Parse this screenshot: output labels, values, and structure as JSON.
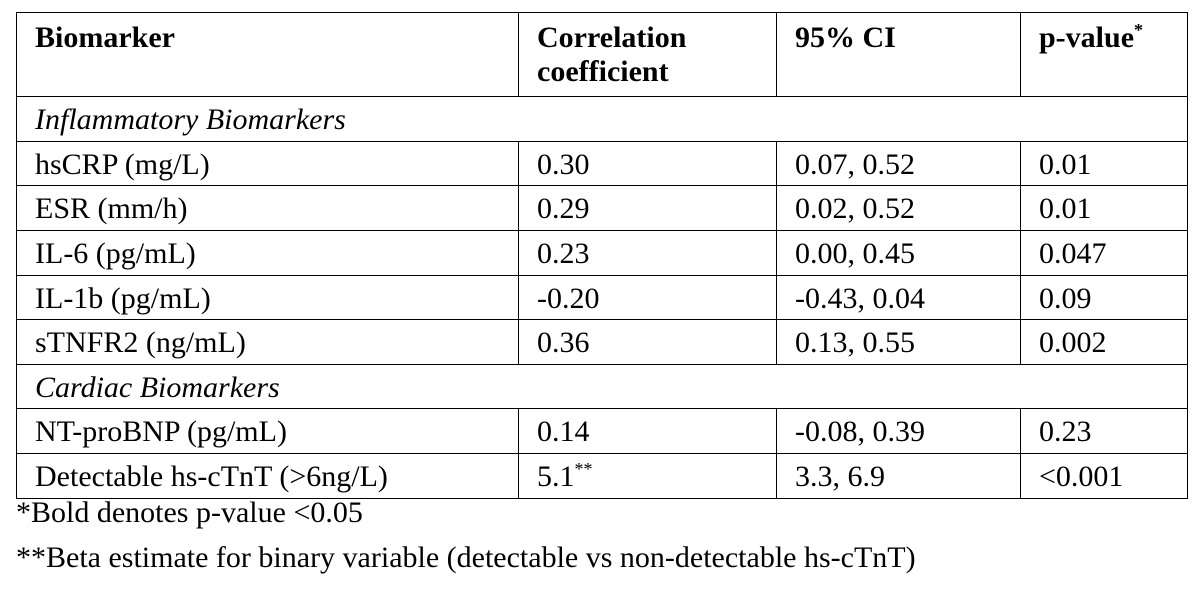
{
  "table": {
    "headers": {
      "biomarker": "Biomarker",
      "correlation": "Correlation coefficient",
      "ci": "95% CI",
      "pvalue": "p-value",
      "pvalue_mark": "*"
    },
    "sections": [
      {
        "title": "Inflammatory Biomarkers",
        "rows": [
          {
            "biomarker": "hsCRP (mg/L)",
            "correlation": "0.30",
            "correlation_mark": "",
            "ci": "0.07, 0.52",
            "pvalue": "0.01",
            "significant": true
          },
          {
            "biomarker": "ESR (mm/h)",
            "correlation": "0.29",
            "correlation_mark": "",
            "ci": "0.02, 0.52",
            "pvalue": "0.01",
            "significant": true
          },
          {
            "biomarker": "IL-6 (pg/mL)",
            "correlation": "0.23",
            "correlation_mark": "",
            "ci": "0.00, 0.45",
            "pvalue": "0.047",
            "significant": true
          },
          {
            "biomarker": "IL-1b (pg/mL)",
            "correlation": "-0.20",
            "correlation_mark": "",
            "ci": "-0.43, 0.04",
            "pvalue": "0.09",
            "significant": false
          },
          {
            "biomarker": "sTNFR2 (ng/mL)",
            "correlation": "0.36",
            "correlation_mark": "",
            "ci": "0.13, 0.55",
            "pvalue": "0.002",
            "significant": true
          }
        ]
      },
      {
        "title": "Cardiac Biomarkers",
        "rows": [
          {
            "biomarker": "NT-proBNP (pg/mL)",
            "correlation": "0.14",
            "correlation_mark": "",
            "ci": "-0.08, 0.39",
            "pvalue": "0.23",
            "significant": false
          },
          {
            "biomarker": "Detectable hs-cTnT (>6ng/L)",
            "correlation": "5.1",
            "correlation_mark": "**",
            "ci": "3.3, 6.9",
            "pvalue": "<0.001",
            "significant": true
          }
        ]
      }
    ]
  },
  "footnotes": [
    "*Bold denotes p-value <0.05",
    "**Beta estimate for binary variable (detectable vs non-detectable hs-cTnT)"
  ]
}
